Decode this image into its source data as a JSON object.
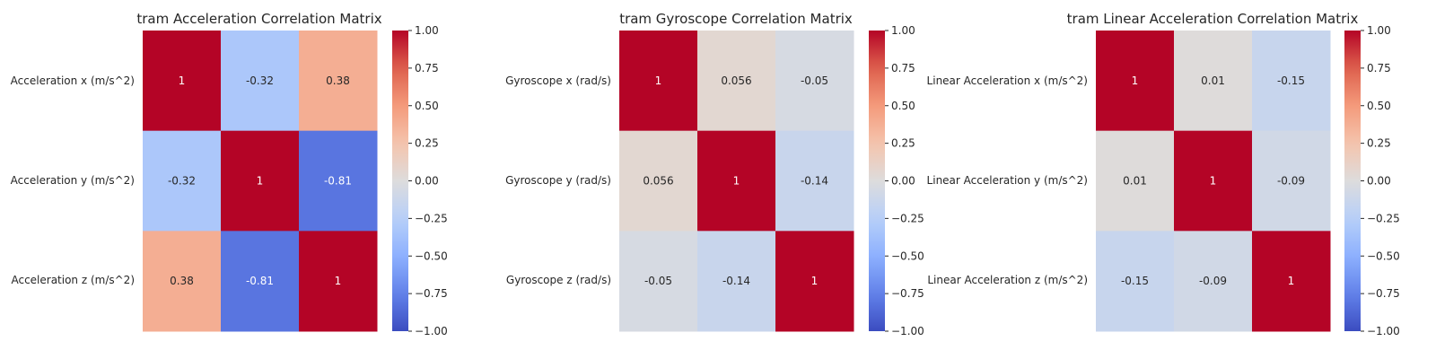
{
  "colors": {
    "min": "#3b4cc0",
    "mid": "#dddcdc",
    "max": "#b40426",
    "text_dark": "#262626",
    "text_light": "#ffffff"
  },
  "chart_data": [
    {
      "type": "heatmap",
      "title": "tram Acceleration Correlation Matrix",
      "row_labels": [
        "Acceleration x (m/s^2)",
        "Acceleration y (m/s^2)",
        "Acceleration z (m/s^2)"
      ],
      "values": [
        [
          1,
          -0.32,
          0.38
        ],
        [
          -0.32,
          1,
          -0.81
        ],
        [
          0.38,
          -0.81,
          1
        ]
      ],
      "value_labels": [
        [
          "1",
          "-0.32",
          "0.38"
        ],
        [
          "-0.32",
          "1",
          "-0.81"
        ],
        [
          "0.38",
          "-0.81",
          "1"
        ]
      ],
      "colormap": "coolwarm",
      "vmin": -1,
      "vmax": 1,
      "colorbar_ticks": [
        1.0,
        0.75,
        0.5,
        0.25,
        0.0,
        -0.25,
        -0.5,
        -0.75,
        -1.0
      ],
      "colorbar_tick_labels": [
        "1.00",
        "0.75",
        "0.50",
        "0.25",
        "0.00",
        "−0.25",
        "−0.50",
        "−0.75",
        "−1.00"
      ]
    },
    {
      "type": "heatmap",
      "title": "tram Gyroscope Correlation Matrix",
      "row_labels": [
        "Gyroscope x (rad/s)",
        "Gyroscope y (rad/s)",
        "Gyroscope z (rad/s)"
      ],
      "values": [
        [
          1,
          0.056,
          -0.05
        ],
        [
          0.056,
          1,
          -0.14
        ],
        [
          -0.05,
          -0.14,
          1
        ]
      ],
      "value_labels": [
        [
          "1",
          "0.056",
          "-0.05"
        ],
        [
          "0.056",
          "1",
          "-0.14"
        ],
        [
          "-0.05",
          "-0.14",
          "1"
        ]
      ],
      "colormap": "coolwarm",
      "vmin": -1,
      "vmax": 1,
      "colorbar_ticks": [
        1.0,
        0.75,
        0.5,
        0.25,
        0.0,
        -0.25,
        -0.5,
        -0.75,
        -1.0
      ],
      "colorbar_tick_labels": [
        "1.00",
        "0.75",
        "0.50",
        "0.25",
        "0.00",
        "−0.25",
        "−0.50",
        "−0.75",
        "−1.00"
      ]
    },
    {
      "type": "heatmap",
      "title": "tram Linear Acceleration Correlation Matrix",
      "row_labels": [
        "Linear Acceleration x (m/s^2)",
        "Linear Acceleration y (m/s^2)",
        "Linear Acceleration z (m/s^2)"
      ],
      "values": [
        [
          1,
          0.01,
          -0.15
        ],
        [
          0.01,
          1,
          -0.09
        ],
        [
          -0.15,
          -0.09,
          1
        ]
      ],
      "value_labels": [
        [
          "1",
          "0.01",
          "-0.15"
        ],
        [
          "0.01",
          "1",
          "-0.09"
        ],
        [
          "-0.15",
          "-0.09",
          "1"
        ]
      ],
      "colormap": "coolwarm",
      "vmin": -1,
      "vmax": 1,
      "colorbar_ticks": [
        1.0,
        0.75,
        0.5,
        0.25,
        0.0,
        -0.25,
        -0.5,
        -0.75,
        -1.0
      ],
      "colorbar_tick_labels": [
        "1.00",
        "0.75",
        "0.50",
        "0.25",
        "0.00",
        "−0.25",
        "−0.50",
        "−0.75",
        "−1.00"
      ]
    }
  ]
}
